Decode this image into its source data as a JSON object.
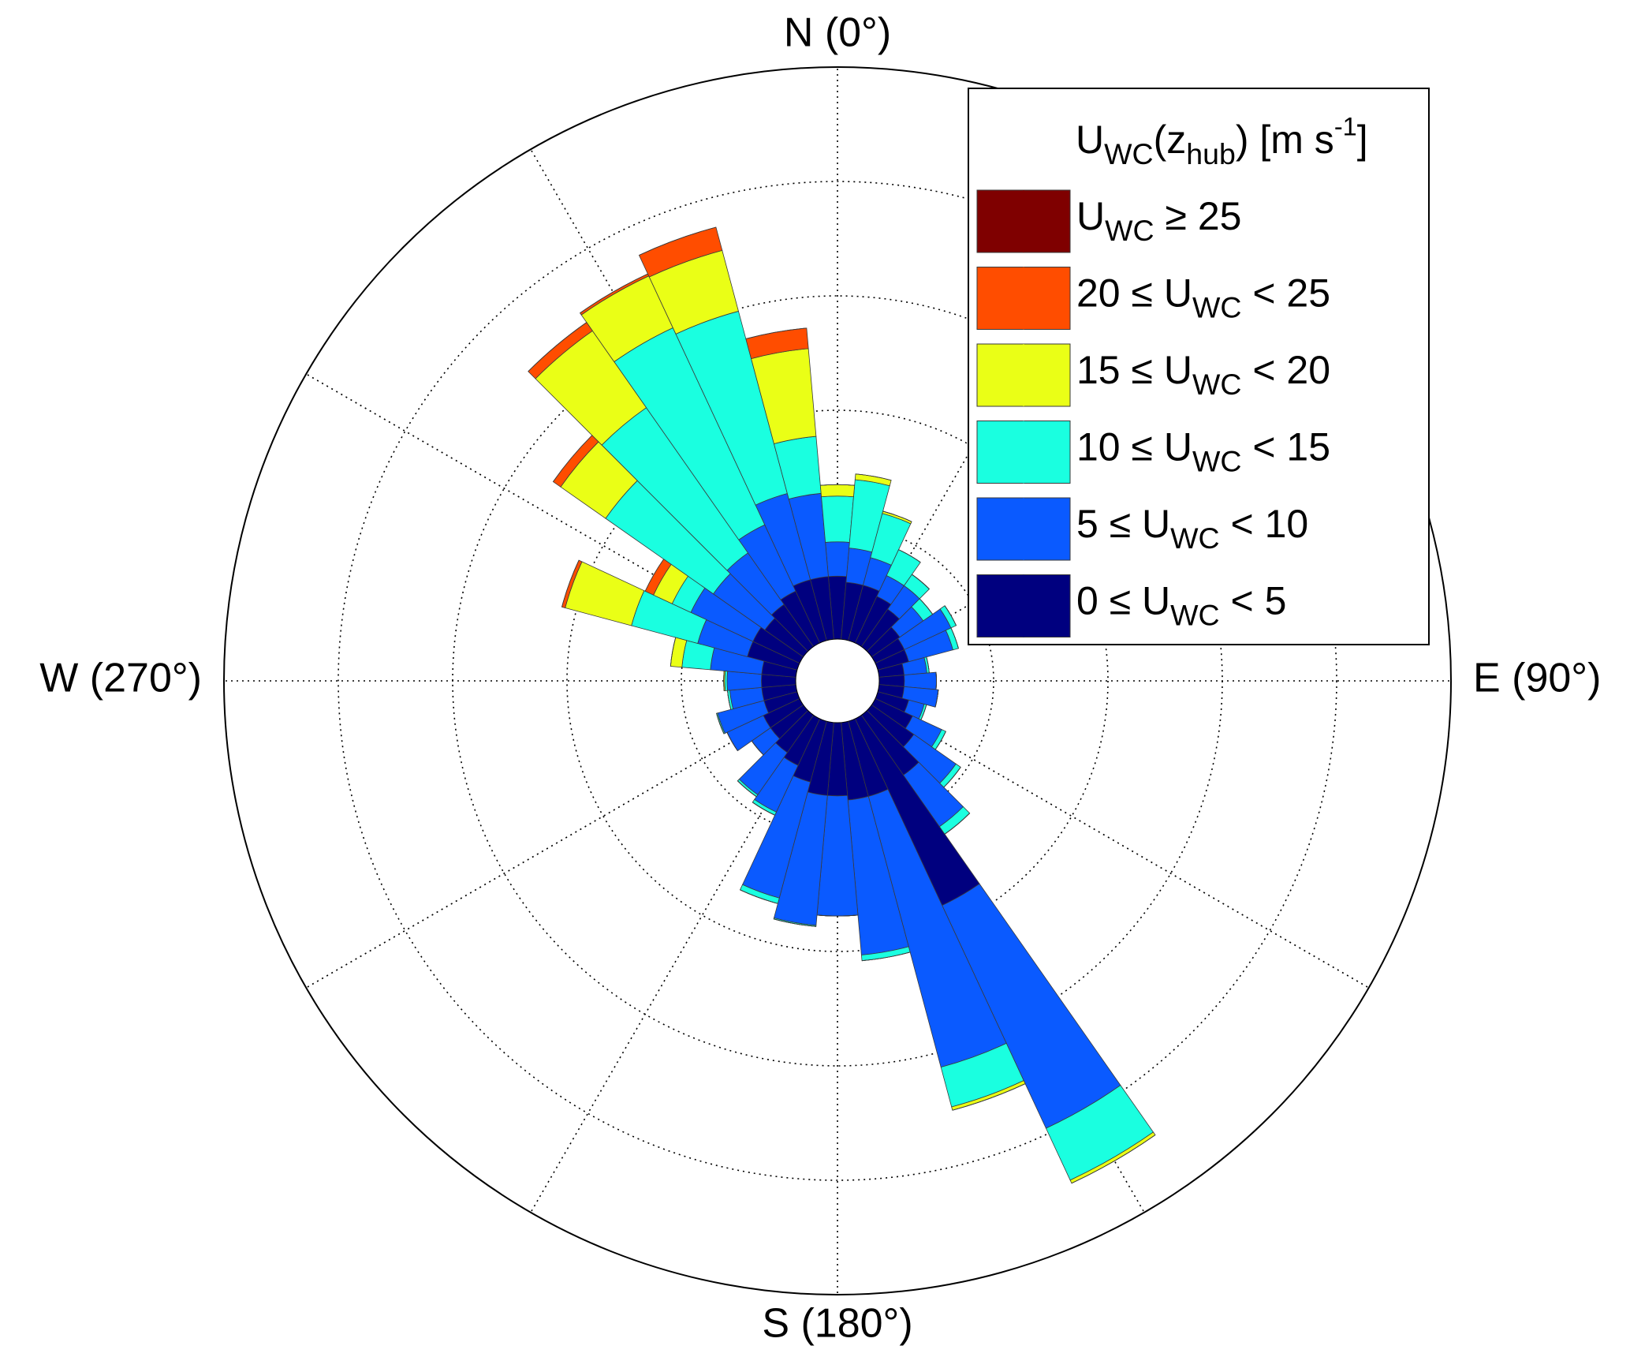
{
  "chart_data": {
    "type": "windrose",
    "legend_title": [
      {
        "text": "U"
      },
      {
        "text": "WC",
        "sub": true
      },
      {
        "text": "(z"
      },
      {
        "text": "hub",
        "sub": true
      },
      {
        "text": ") [m s"
      },
      {
        "text": "-1",
        "sup": true
      },
      {
        "text": "]"
      }
    ],
    "x": [
      0,
      10,
      20,
      30,
      40,
      50,
      60,
      70,
      80,
      90,
      100,
      110,
      120,
      130,
      140,
      150,
      160,
      170,
      180,
      190,
      200,
      210,
      220,
      230,
      240,
      250,
      260,
      270,
      280,
      290,
      300,
      310,
      320,
      330,
      340,
      350
    ],
    "ylim": [
      0,
      5
    ],
    "yticks": [
      1,
      2,
      3,
      4,
      5
    ],
    "theta_gridlines": [
      0,
      30,
      60,
      90,
      120,
      150,
      180,
      210,
      240,
      270,
      300,
      330
    ],
    "theta_labels": [
      {
        "value": 0,
        "label": "N (0°)"
      },
      {
        "value": 90,
        "label": "E (90°)"
      },
      {
        "value": 180,
        "label": "S (180°)"
      },
      {
        "value": 270,
        "label": "W (270°)"
      }
    ],
    "legend": "upper right",
    "series": [
      {
        "name": [
          {
            "text": "0 ≤ U"
          },
          {
            "text": "WC",
            "sub": true
          },
          {
            "text": " < 5"
          }
        ],
        "color": "#00007f",
        "values": [
          0.55,
          0.5,
          0.5,
          0.45,
          0.4,
          0.3,
          0.28,
          0.28,
          0.22,
          0.22,
          0.22,
          0.28,
          0.36,
          0.45,
          0.64,
          1.8,
          0.68,
          0.68,
          0.64,
          0.64,
          0.55,
          0.45,
          0.4,
          0.35,
          0.35,
          0.3,
          0.3,
          0.3,
          0.3,
          0.45,
          0.45,
          0.41,
          0.45,
          0.5,
          0.55,
          0.55
        ]
      },
      {
        "name": [
          {
            "text": "5 ≤ U"
          },
          {
            "text": "WC",
            "sub": true
          },
          {
            "text": " < 10"
          }
        ],
        "color": "#0a5aff",
        "values": [
          0.3,
          0.3,
          0.25,
          0.2,
          0.25,
          0.25,
          0.45,
          0.4,
          0.2,
          0.28,
          0.3,
          0.14,
          0.28,
          0.45,
          0.55,
          2.15,
          2.45,
          1.36,
          1.05,
          1.14,
          1.05,
          0.45,
          0.45,
          0.2,
          0.35,
          0.42,
          0.28,
          0.3,
          0.45,
          0.45,
          0.6,
          0.55,
          0.55,
          0.64,
          0.78,
          0.73
        ]
      },
      {
        "name": [
          {
            "text": "10 ≤ U"
          },
          {
            "text": "WC",
            "sub": true
          },
          {
            "text": " < 15"
          }
        ],
        "color": "#1affe0",
        "values": [
          0.4,
          0.6,
          0.4,
          0.25,
          0.12,
          0.1,
          0.05,
          0.05,
          0.02,
          0,
          0,
          0.02,
          0.04,
          0.05,
          0.08,
          0.5,
          0.36,
          0.05,
          0,
          0.01,
          0.05,
          0.03,
          0.02,
          0,
          0,
          0.01,
          0.02,
          0.02,
          0.25,
          0.6,
          0.18,
          1.15,
          1.55,
          1.9,
          1.65,
          0.5
        ]
      },
      {
        "name": [
          {
            "text": "15 ≤ U"
          },
          {
            "text": "WC",
            "sub": true
          },
          {
            "text": " < 20"
          }
        ],
        "color": "#eaff16",
        "values": [
          0.1,
          0.05,
          0.02,
          0,
          0,
          0,
          0,
          0,
          0,
          0,
          0,
          0,
          0,
          0,
          0,
          0.03,
          0.03,
          0,
          0,
          0,
          0,
          0,
          0,
          0,
          0,
          0,
          0,
          0.01,
          0.1,
          0.6,
          0.18,
          0.48,
          0.82,
          0.5,
          0.55,
          0.77
        ]
      },
      {
        "name": [
          {
            "text": "20 ≤ U"
          },
          {
            "text": "WC",
            "sub": true
          },
          {
            "text": " < 25"
          }
        ],
        "color": "#ff4d00",
        "values": [
          0,
          0,
          0,
          0,
          0,
          0,
          0,
          0,
          0,
          0,
          0,
          0,
          0,
          0,
          0,
          0,
          0,
          0,
          0,
          0,
          0,
          0,
          0,
          0,
          0,
          0,
          0,
          0,
          0,
          0.03,
          0.08,
          0.08,
          0.09,
          0.02,
          0.21,
          0.18
        ]
      },
      {
        "name": [
          {
            "text": "U"
          },
          {
            "text": "WC",
            "sub": true
          },
          {
            "text": " ≥ 25"
          }
        ],
        "color": "#7f0000",
        "values": [
          0,
          0,
          0,
          0,
          0,
          0,
          0,
          0,
          0,
          0,
          0,
          0,
          0,
          0,
          0,
          0,
          0,
          0,
          0,
          0,
          0,
          0,
          0,
          0,
          0,
          0,
          0,
          0,
          0,
          0,
          0,
          0,
          0,
          0,
          0,
          0
        ]
      }
    ]
  }
}
